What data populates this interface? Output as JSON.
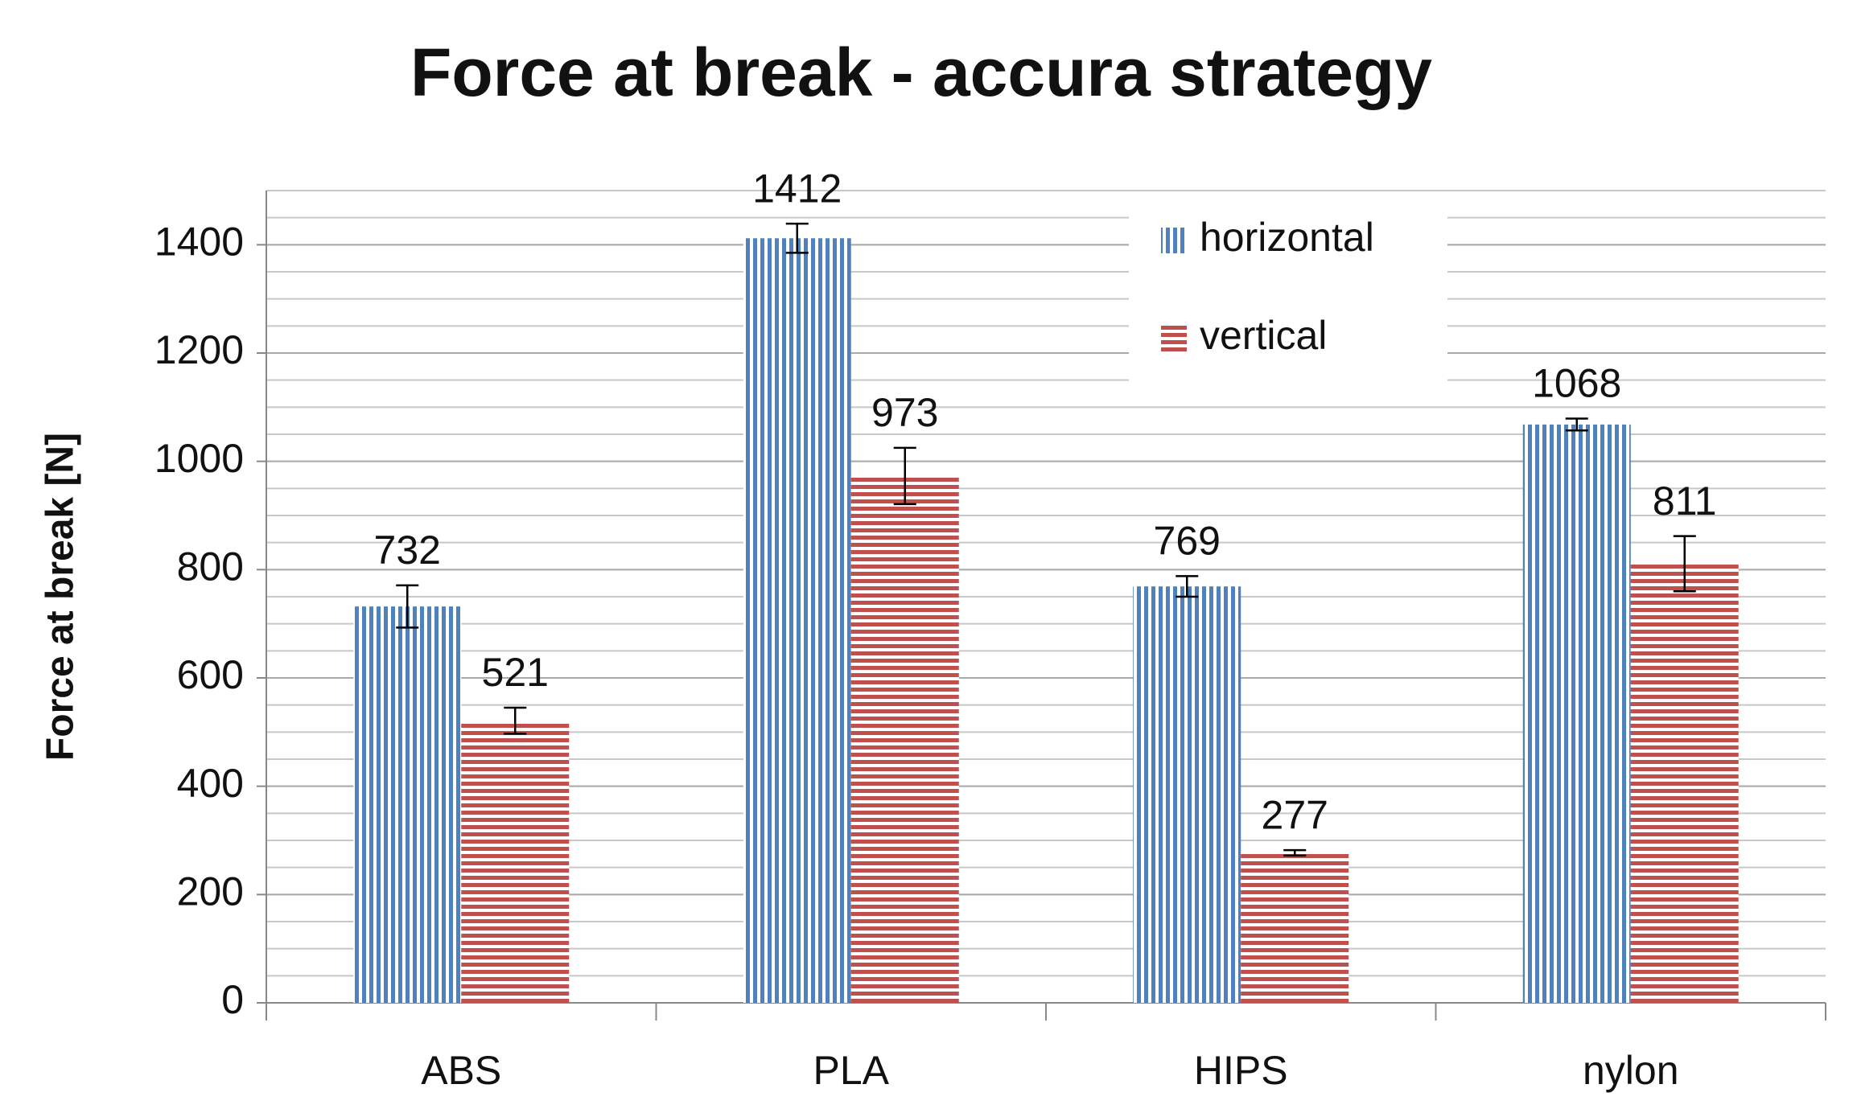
{
  "chart_data": {
    "type": "bar",
    "title": "Force at break - accura strategy",
    "y_label": "Force at break [N]",
    "categories": [
      "ABS",
      "PLA",
      "HIPS",
      "nylon"
    ],
    "series": [
      {
        "name": "horizontal",
        "color": "#4f81bd",
        "pattern": "vertical-stripes",
        "values": [
          732,
          1412,
          769,
          1068
        ],
        "errors": [
          39,
          27,
          19,
          11
        ]
      },
      {
        "name": "vertical",
        "color": "#c0504d",
        "pattern": "horizontal-stripes",
        "values": [
          521,
          973,
          277,
          811
        ],
        "errors": [
          24,
          52,
          5,
          51
        ]
      }
    ],
    "ylim": [
      0,
      1500
    ],
    "yticks": [
      0,
      200,
      400,
      600,
      800,
      1000,
      1200,
      1400
    ],
    "grid": true,
    "minor_grid_step": 50,
    "legend": "top-right"
  }
}
